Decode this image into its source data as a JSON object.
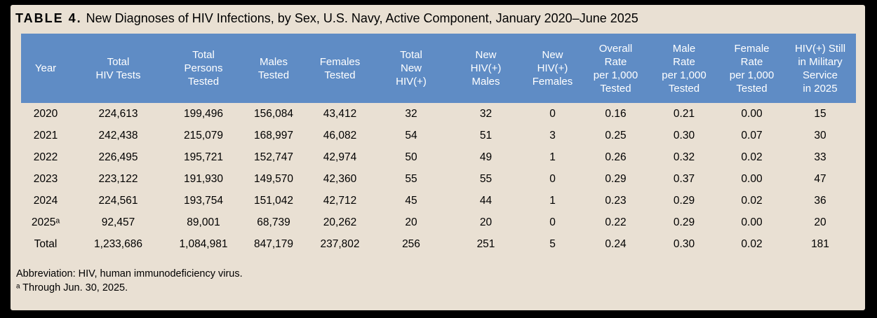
{
  "title": {
    "label": "TABLE 4.",
    "text": "New Diagnoses of HIV Infections, by Sex, U.S. Navy, Active Component, January 2020–June 2025"
  },
  "table": {
    "header": [
      "Year",
      "Total\nHIV Tests",
      "Total\nPersons\nTested",
      "Males\nTested",
      "Females\nTested",
      "Total\nNew\nHIV(+)",
      "New\nHIV(+)\nMales",
      "New\nHIV(+)\nFemales",
      "Overall\nRate\nper 1,000\nTested",
      "Male\nRate\nper 1,000\nTested",
      "Female\nRate\nper 1,000\nTested",
      "HIV(+) Still\nin Military\nService\nin 2025"
    ],
    "rows": [
      [
        "2020",
        "224,613",
        "199,496",
        "156,084",
        "43,412",
        "32",
        "32",
        "0",
        "0.16",
        "0.21",
        "0.00",
        "15"
      ],
      [
        "2021",
        "242,438",
        "215,079",
        "168,997",
        "46,082",
        "54",
        "51",
        "3",
        "0.25",
        "0.30",
        "0.07",
        "30"
      ],
      [
        "2022",
        "226,495",
        "195,721",
        "152,747",
        "42,974",
        "50",
        "49",
        "1",
        "0.26",
        "0.32",
        "0.02",
        "33"
      ],
      [
        "2023",
        "223,122",
        "191,930",
        "149,570",
        "42,360",
        "55",
        "55",
        "0",
        "0.29",
        "0.37",
        "0.00",
        "47"
      ],
      [
        "2024",
        "224,561",
        "193,754",
        "151,042",
        "42,712",
        "45",
        "44",
        "1",
        "0.23",
        "0.29",
        "0.02",
        "36"
      ],
      [
        "2025ᵃ",
        "92,457",
        "89,001",
        "68,739",
        "20,262",
        "20",
        "20",
        "0",
        "0.22",
        "0.29",
        "0.00",
        "20"
      ],
      [
        "Total",
        "1,233,686",
        "1,084,981",
        "847,179",
        "237,802",
        "256",
        "251",
        "5",
        "0.24",
        "0.30",
        "0.02",
        "181"
      ]
    ]
  },
  "footnotes": [
    "Abbreviation: HIV, human immunodeficiency virus.",
    "ᵃ Through Jun. 30, 2025."
  ],
  "colors": {
    "frame": "#000000",
    "panel_bg": "#e9e0d3",
    "header_bg": "#5f8cc5",
    "header_text": "#ffffff",
    "body_text": "#000000"
  }
}
